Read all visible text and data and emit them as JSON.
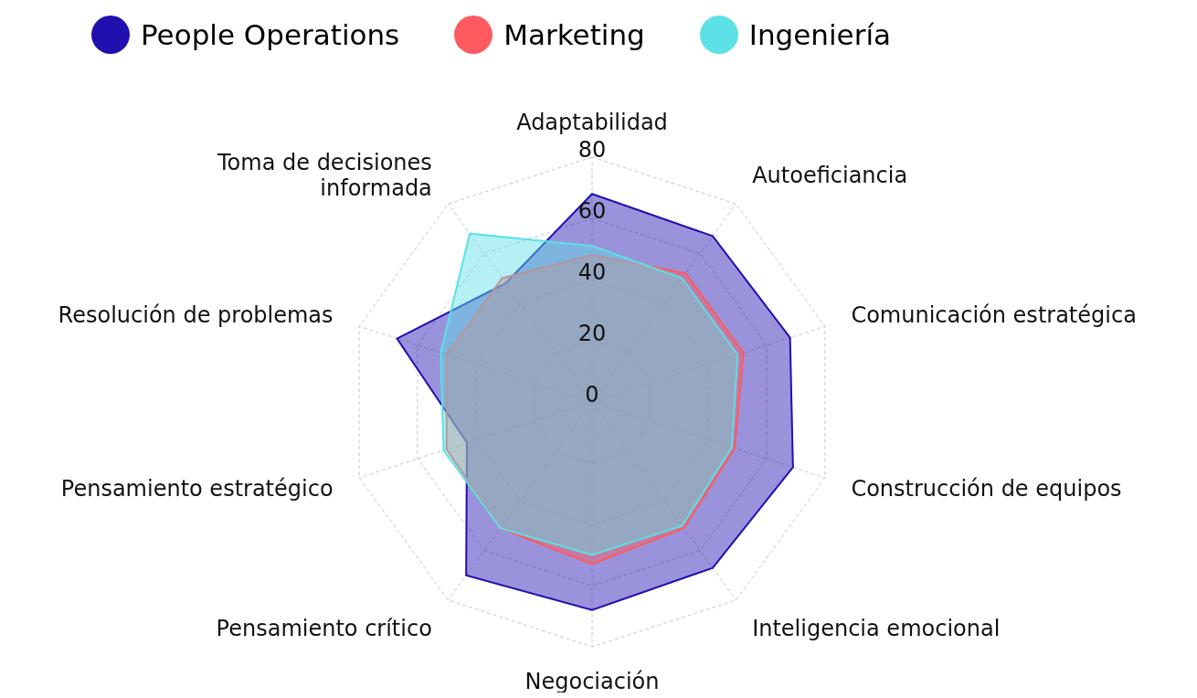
{
  "chart_data": {
    "type": "radar",
    "categories": [
      "Adaptabilidad",
      "Autoeficiancia",
      "Comunicación estratégica",
      "Construcción de equipos",
      "Inteligencia emocional",
      "Negociación",
      "Pensamiento crítico",
      "Pensamiento estratégico",
      "Resolución de problemas",
      "Toma de decisiones informada"
    ],
    "series": [
      {
        "name": "People Operations",
        "color": "#2010b0",
        "values": [
          68,
          67,
          68,
          69,
          67,
          68,
          70,
          43,
          67,
          48
        ]
      },
      {
        "name": "Marketing",
        "color": "#ff5a5f",
        "values": [
          48,
          52,
          52,
          49,
          51,
          53,
          51,
          50,
          50,
          50
        ]
      },
      {
        "name": "Ingeniería",
        "color": "#5ce1e6",
        "values": [
          51,
          50,
          50,
          48,
          50,
          50,
          51,
          51,
          52,
          68
        ]
      }
    ],
    "ylim": [
      0,
      80
    ],
    "yticks": [
      0,
      20,
      40,
      60,
      80
    ],
    "grid": true,
    "legend": "top"
  }
}
